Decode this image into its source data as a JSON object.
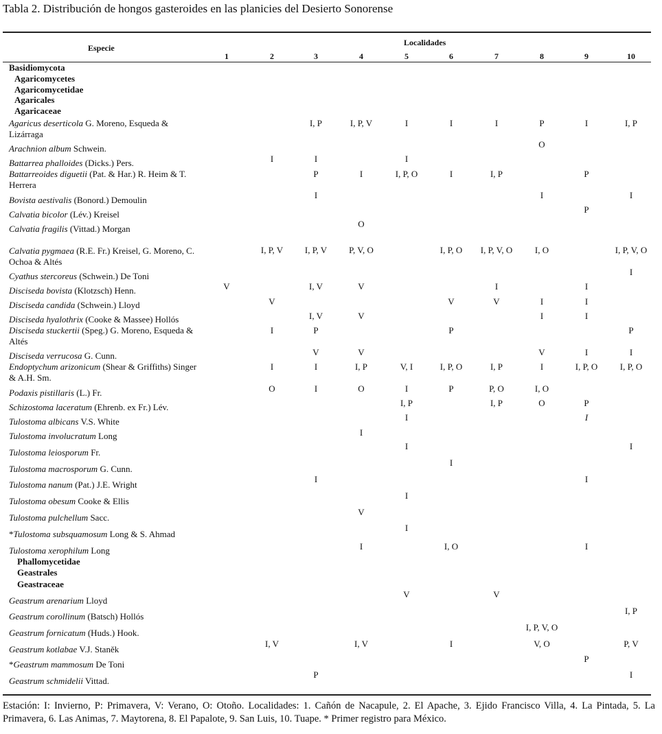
{
  "header": {
    "title": "Tabla 2. Distribución de hongos gasteroides en las planicies del Desierto Sonorense"
  },
  "table": {
    "species_header": "Especie",
    "localities_header": "Localidades",
    "columns": [
      "1",
      "2",
      "3",
      "4",
      "5",
      "6",
      "7",
      "8",
      "9",
      "10"
    ],
    "rows": [
      {
        "taxon": "Basidiomycota"
      },
      {
        "taxon": "Agaricomycetes"
      },
      {
        "taxon": "Agaricomycetidae"
      },
      {
        "taxon": "Agaricales"
      },
      {
        "taxon": "Agaricaceae"
      },
      {
        "species": "Agaricus deserticola",
        "author": "G. Moreno, Esqueda & Lizárraga",
        "values": [
          null,
          null,
          "I, P",
          "I, P, V",
          "I",
          "I",
          "I",
          "P",
          "I",
          "I, P"
        ]
      },
      {
        "species": "Arachnion album",
        "author": "Schwein.",
        "values": [
          null,
          null,
          null,
          null,
          null,
          null,
          null,
          "O",
          null,
          null
        ]
      },
      {
        "species": "Battarrea phalloides",
        "author": "(Dicks.) Pers.",
        "values": [
          null,
          "I",
          "I",
          null,
          "I",
          null,
          null,
          null,
          null,
          null
        ]
      },
      {
        "species": "Battarreoides diguetii",
        "author": "(Pat. & Har.) R. Heim & T. Herrera",
        "values": [
          null,
          null,
          "P",
          "I",
          "I, P, O",
          "I",
          "I, P",
          null,
          "P",
          null
        ]
      },
      {
        "species": "Bovista aestivalis",
        "author": "(Bonord.) Demoulin",
        "values": [
          null,
          null,
          "I",
          null,
          null,
          null,
          null,
          "I",
          null,
          "I"
        ]
      },
      {
        "species": "Calvatia bicolor",
        "author": "(Lév.) Kreisel",
        "values": [
          null,
          null,
          null,
          null,
          null,
          null,
          null,
          null,
          "P",
          null
        ]
      },
      {
        "species": "Calvatia fragilis",
        "author": "(Vittad.) Morgan",
        "values": [
          null,
          null,
          null,
          "O",
          null,
          null,
          null,
          null,
          null,
          null
        ]
      },
      {
        "species": "Calvatia pygmaea",
        "author": "(R.E. Fr.) Kreisel, G. Moreno, C. Ochoa & Altés",
        "values": [
          null,
          "I, P, V",
          "I, P, V",
          "P, V, O",
          null,
          "I, P, O",
          "I, P, V, O",
          "I, O",
          null,
          "I, P, V, O"
        ]
      },
      {
        "species": "Cyathus stercoreus",
        "author": "(Schwein.) De Toni",
        "values": [
          null,
          null,
          null,
          null,
          null,
          null,
          null,
          null,
          null,
          "I"
        ]
      },
      {
        "species": "Disciseda bovista",
        "author": "(Klotzsch) Henn.",
        "values": [
          "V",
          null,
          "I, V",
          "V",
          null,
          null,
          "I",
          null,
          "I",
          null
        ]
      },
      {
        "species": "Disciseda candida",
        "author": "(Schwein.) Lloyd",
        "values": [
          null,
          "V",
          null,
          null,
          null,
          "V",
          "V",
          "I",
          "I",
          null
        ]
      },
      {
        "species": "Disciseda hyalothrix",
        "author": "(Cooke & Massee) Hollós",
        "values": [
          null,
          null,
          "I, V",
          "V",
          null,
          null,
          null,
          "I",
          "I",
          null
        ]
      },
      {
        "species": "Disciseda stuckertii",
        "author": "(Speg.) G. Moreno, Esqueda & Altés",
        "values": [
          null,
          "I",
          "P",
          null,
          null,
          "P",
          null,
          null,
          null,
          "P"
        ]
      },
      {
        "species": "Disciseda verrucosa",
        "author": "G. Cunn.",
        "values": [
          null,
          null,
          "V",
          "V",
          null,
          null,
          null,
          "V",
          "I",
          "I"
        ]
      },
      {
        "species": "Endoptychum arizonicum",
        "author": "(Shear & Griffiths) Singer & A.H. Sm.",
        "values": [
          null,
          "I",
          "I",
          "I, P",
          "V, I",
          "I, P, O",
          "I, P",
          "I",
          "I, P, O",
          "I, P, O"
        ]
      },
      {
        "species": "Podaxis pistillaris",
        "author": "(L.) Fr.",
        "values": [
          null,
          "O",
          "I",
          "O",
          "I",
          "P",
          "P, O",
          "I, O",
          null,
          null
        ]
      },
      {
        "species": "Schizostoma laceratum",
        "author": "(Ehrenb. ex Fr.) Lév.",
        "values": [
          null,
          null,
          null,
          null,
          "I, P",
          null,
          "I, P",
          "O",
          "P",
          null
        ]
      },
      {
        "species": "Tulostoma albicans",
        "author": "V.S. White",
        "values": [
          null,
          null,
          null,
          null,
          "I",
          null,
          null,
          null,
          "I",
          null
        ]
      },
      {
        "species": "Tulostoma involucratum",
        "author": "Long",
        "values": [
          null,
          null,
          null,
          "I",
          null,
          null,
          null,
          null,
          null,
          null
        ]
      },
      {
        "species": "Tulostoma leiosporum",
        "author": "Fr.",
        "values": [
          null,
          null,
          null,
          null,
          "I",
          null,
          null,
          null,
          null,
          "I"
        ]
      },
      {
        "species": "Tulostoma macrosporum",
        "author": "G. Cunn.",
        "values": [
          null,
          null,
          null,
          null,
          null,
          "I",
          null,
          null,
          null,
          null
        ]
      },
      {
        "species": "Tulostoma nanum",
        "author": "(Pat.) J.E. Wright",
        "values": [
          null,
          null,
          "I",
          null,
          null,
          null,
          null,
          null,
          "I",
          null
        ]
      },
      {
        "species": "Tulostoma obesum",
        "author": "Cooke & Ellis",
        "values": [
          null,
          null,
          null,
          null,
          "I",
          null,
          null,
          null,
          null,
          null
        ]
      },
      {
        "species": "Tulostoma pulchellum",
        "author": "Sacc.",
        "values": [
          null,
          null,
          null,
          "V",
          null,
          null,
          null,
          null,
          null,
          null
        ]
      },
      {
        "prefix": "*",
        "species": "Tulostoma subsquamosum",
        "author": "Long & S. Ahmad",
        "values": [
          null,
          null,
          null,
          null,
          "I",
          null,
          null,
          null,
          null,
          null
        ]
      },
      {
        "species": "Tulostoma xerophilum",
        "author": "Long",
        "values": [
          null,
          null,
          null,
          "I",
          null,
          "I, O",
          null,
          null,
          "I",
          null
        ]
      },
      {
        "taxon": "Phallomycetidae"
      },
      {
        "taxon": "Geastrales"
      },
      {
        "taxon": "Geastraceae"
      },
      {
        "species": "Geastrum arenarium",
        "author": "Lloyd",
        "values": [
          null,
          null,
          null,
          null,
          "V",
          null,
          "V",
          null,
          null,
          null
        ]
      },
      {
        "species": "Geastrum corollinum",
        "author": "(Batsch) Hollós",
        "values": [
          null,
          null,
          null,
          null,
          null,
          null,
          null,
          null,
          null,
          "I, P"
        ]
      },
      {
        "species": "Geastrum fornicatum",
        "author": "(Huds.) Hook.",
        "values": [
          null,
          null,
          null,
          null,
          null,
          null,
          null,
          "I, P, V, O",
          null,
          null
        ]
      },
      {
        "species": "Geastrum kotlabae",
        "author": "V.J. Staněk",
        "values": [
          null,
          "I, V",
          null,
          "I, V",
          null,
          "I",
          null,
          "V, O",
          null,
          "P, V"
        ]
      },
      {
        "prefix": "*",
        "species": "Geastrum mammosum",
        "author": "De Toni",
        "values": [
          null,
          null,
          null,
          null,
          null,
          null,
          null,
          null,
          "P",
          null
        ]
      },
      {
        "species": "Geastrum schmidelii",
        "author": "Vittad.",
        "values": [
          null,
          null,
          "P",
          null,
          null,
          null,
          null,
          null,
          null,
          "I"
        ]
      }
    ]
  },
  "footnote": "Estación: I: Invierno, P: Primavera, V: Verano, O: Otoño. Localidades: 1. Cañón de Nacapule, 2. El Apache, 3. Ejido Francisco Villa, 4. La Pintada, 5. La Primavera, 6. Las Animas, 7. Maytorena, 8. El Papalote, 9. San Luis, 10. Tuape. * Primer registro para México."
}
